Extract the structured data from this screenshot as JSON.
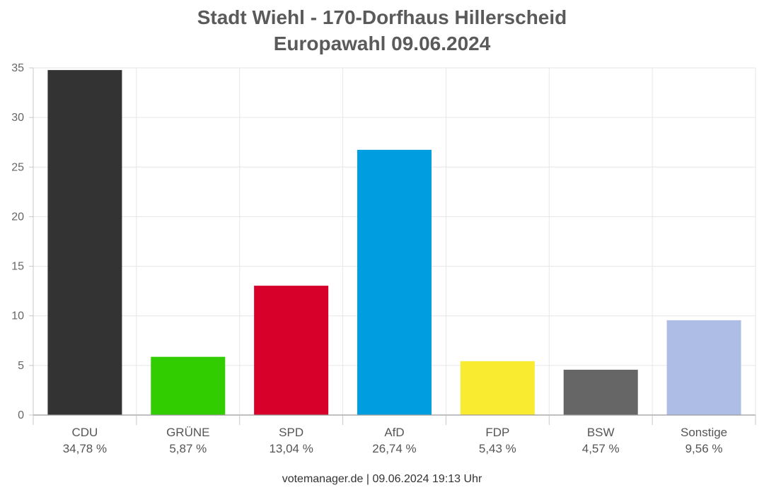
{
  "chart_data": {
    "type": "bar",
    "title_lines": [
      "Stadt Wiehl - 170-Dorfhaus Hillerscheid",
      "Europawahl 09.06.2024"
    ],
    "categories": [
      "CDU",
      "GRÜNE",
      "SPD",
      "AfD",
      "FDP",
      "BSW",
      "Sonstige"
    ],
    "values": [
      34.78,
      5.87,
      13.04,
      26.74,
      5.43,
      4.57,
      9.56
    ],
    "value_labels": [
      "34,78 %",
      "5,87 %",
      "13,04 %",
      "26,74 %",
      "5,43 %",
      "4,57 %",
      "9,56 %"
    ],
    "colors": [
      "#333333",
      "#32cd00",
      "#d6002b",
      "#009ee0",
      "#f9eb2f",
      "#666666",
      "#adbde6"
    ],
    "ylim": [
      0,
      35
    ],
    "yticks": [
      0,
      5,
      10,
      15,
      20,
      25,
      30,
      35
    ],
    "grid": true,
    "xlabel": "",
    "ylabel": ""
  },
  "footer": "votemanager.de | 09.06.2024 19:13 Uhr"
}
